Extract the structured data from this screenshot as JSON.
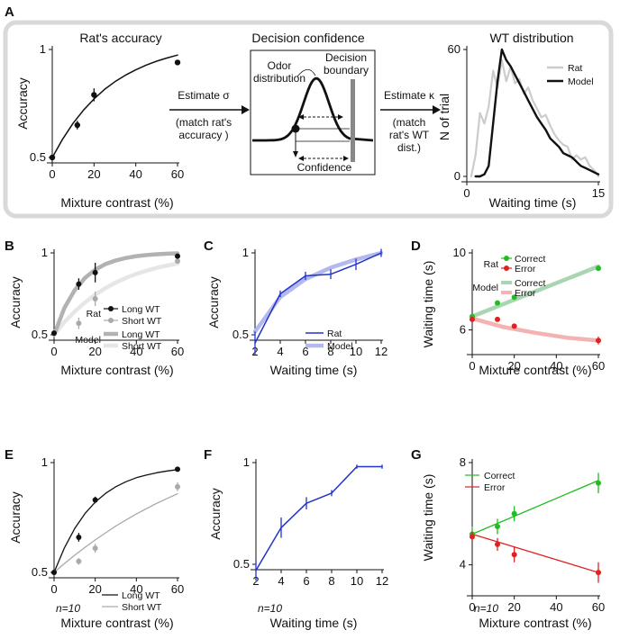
{
  "panels": {
    "A": {
      "label": "A",
      "accuracy_title": "Rat's accuracy",
      "accuracy_ylabel": "Accuracy",
      "accuracy_xlabel": "Mixture contrast (%)",
      "accuracy_xticks": [
        "0",
        "20",
        "40",
        "60"
      ],
      "accuracy_yticks": [
        "0.5",
        "1"
      ],
      "arrow1_text_1": "Estimate σ",
      "arrow1_text_2": "(match rat's",
      "arrow1_text_3": "accuracy )",
      "confidence_title": "Decision confidence",
      "odor_label_1": "Odor",
      "odor_label_2": "distribution",
      "boundary_label_1": "Decision",
      "boundary_label_2": "boundary",
      "confidence_label": "Confidence",
      "arrow2_text_1": "Estimate κ",
      "arrow2_text_2": "(match",
      "arrow2_text_3": "rat's WT",
      "arrow2_text_4": "dist.)",
      "wt_title": "WT distribution",
      "wt_ylabel": "N of trial",
      "wt_xlabel": "Waiting time (s)",
      "wt_xticks": [
        "0",
        "15"
      ],
      "wt_yticks": [
        "0",
        "60"
      ],
      "legend_rat": "Rat",
      "legend_model": "Model"
    },
    "B": {
      "label": "B",
      "ylabel": "Accuracy",
      "xlabel": "Mixture contrast (%)",
      "xticks": [
        "0",
        "20",
        "40",
        "60"
      ],
      "yticks": [
        "0.5",
        "1"
      ],
      "legend_rat": "Rat",
      "legend_model": "Model",
      "legend_long": "Long WT",
      "legend_short": "Short WT"
    },
    "C": {
      "label": "C",
      "ylabel": "Accuracy",
      "xlabel": "Waiting time (s)",
      "xticks": [
        "2",
        "4",
        "6",
        "8",
        "10",
        "12"
      ],
      "yticks": [
        "0.5",
        "1"
      ],
      "legend_rat": "Rat",
      "legend_model": "Model"
    },
    "D": {
      "label": "D",
      "ylabel": "Waiting time (s)",
      "xlabel": "Mixture contrast (%)",
      "xticks": [
        "0",
        "20",
        "40",
        "60"
      ],
      "yticks": [
        "6",
        "10"
      ],
      "legend_rat": "Rat",
      "legend_model": "Model",
      "legend_correct": "Correct",
      "legend_error": "Error"
    },
    "E": {
      "label": "E",
      "ylabel": "Accuracy",
      "xlabel": "Mixture contrast (%)",
      "xticks": [
        "0",
        "20",
        "40",
        "60"
      ],
      "yticks": [
        "0.5",
        "1"
      ],
      "legend_long": "Long WT",
      "legend_short": "Short WT",
      "n_label": "n=10"
    },
    "F": {
      "label": "F",
      "ylabel": "Accuracy",
      "xlabel": "Waiting time (s)",
      "xticks": [
        "2",
        "4",
        "6",
        "8",
        "10",
        "12"
      ],
      "yticks": [
        "0.5",
        "1"
      ],
      "n_label": "n=10"
    },
    "G": {
      "label": "G",
      "ylabel": "Waiting time (s)",
      "xlabel": "Mixture contrast (%)",
      "xticks": [
        "0",
        "20",
        "40",
        "60"
      ],
      "yticks": [
        "4",
        "8"
      ],
      "legend_correct": "Correct",
      "legend_error": "Error",
      "n_label": "n=10"
    }
  },
  "colors": {
    "black": "#111111",
    "gray": "#aaaaaa",
    "dark_gray": "#b2b2b2",
    "light_gray": "#e6e6e6",
    "blue": "#2233cc",
    "light_blue": "#b3b9ec",
    "green": "#22bb22",
    "red": "#dd2222",
    "light_green": "#a8d5b2",
    "light_red": "#f4b2b2",
    "frame": "#d9d9d9"
  },
  "chart_data": [
    {
      "id": "A-accuracy",
      "type": "scatter",
      "title": "Rat's accuracy",
      "xlabel": "Mixture contrast (%)",
      "ylabel": "Accuracy",
      "xlim": [
        0,
        60
      ],
      "ylim": [
        0.5,
        1
      ],
      "points": [
        {
          "x": 0,
          "y": 0.5
        },
        {
          "x": 12,
          "y": 0.65,
          "err": 0.02
        },
        {
          "x": 20,
          "y": 0.79,
          "err": 0.03
        },
        {
          "x": 60,
          "y": 0.94
        }
      ],
      "fit": {
        "x": [
          0,
          5,
          10,
          15,
          20,
          25,
          30,
          35,
          40,
          45,
          50,
          55,
          60
        ],
        "y": [
          0.5,
          0.586,
          0.659,
          0.72,
          0.771,
          0.815,
          0.851,
          0.881,
          0.906,
          0.928,
          0.946,
          0.961,
          0.974
        ]
      }
    },
    {
      "id": "A-wt",
      "type": "line",
      "title": "WT distribution",
      "xlabel": "Waiting time (s)",
      "ylabel": "N of trial",
      "xlim": [
        0,
        15
      ],
      "ylim": [
        0,
        60
      ],
      "series": [
        {
          "name": "Rat",
          "x": [
            0.5,
            1,
            1.5,
            2,
            2.5,
            3,
            3.5,
            4,
            4.5,
            5,
            5.5,
            6,
            6.5,
            7,
            7.5,
            8,
            8.5,
            9,
            9.5,
            10,
            10.5,
            11,
            11.5,
            12,
            12.5,
            13,
            13.5,
            14,
            14.5,
            15
          ],
          "y": [
            0,
            10,
            30,
            25,
            33,
            50,
            42,
            55,
            45,
            52,
            44,
            46,
            39,
            42,
            36,
            32,
            28,
            29,
            24,
            20,
            17,
            15,
            14,
            8,
            10,
            8,
            9,
            5,
            3,
            0
          ]
        },
        {
          "name": "Model",
          "x": [
            1,
            1.5,
            2,
            2.5,
            3,
            3.5,
            4,
            4.5,
            5,
            5.5,
            6,
            6.5,
            7,
            7.5,
            8,
            8.5,
            9,
            9.5,
            10,
            10.5,
            11,
            11.5,
            12,
            12.5,
            13,
            13.5,
            14,
            14.5,
            15
          ],
          "y": [
            0,
            0,
            1,
            5,
            25,
            45,
            60,
            55,
            52,
            48,
            44,
            40,
            36,
            32,
            28,
            25,
            22,
            18,
            16,
            14,
            11,
            10,
            9,
            7,
            5,
            4,
            3,
            2,
            1
          ]
        }
      ]
    },
    {
      "id": "B",
      "type": "scatter",
      "xlabel": "Mixture contrast (%)",
      "ylabel": "Accuracy",
      "xlim": [
        0,
        60
      ],
      "ylim": [
        0.5,
        1
      ],
      "series": [
        {
          "name": "Rat Long WT",
          "points": [
            {
              "x": 0,
              "y": 0.51,
              "err": 0.01
            },
            {
              "x": 12,
              "y": 0.81,
              "err": 0.035
            },
            {
              "x": 20,
              "y": 0.88,
              "err": 0.06
            },
            {
              "x": 60,
              "y": 0.98,
              "err": 0.015
            }
          ]
        },
        {
          "name": "Rat Short WT",
          "points": [
            {
              "x": 0,
              "y": 0.51,
              "err": 0.01
            },
            {
              "x": 12,
              "y": 0.57,
              "err": 0.035
            },
            {
              "x": 20,
              "y": 0.72,
              "err": 0.045
            },
            {
              "x": 60,
              "y": 0.95,
              "err": 0.015
            }
          ]
        },
        {
          "name": "Model Long WT",
          "x": [
            0,
            5,
            10,
            15,
            20,
            25,
            30,
            35,
            40,
            45,
            50,
            55,
            60
          ],
          "y": [
            0.5,
            0.663,
            0.772,
            0.847,
            0.898,
            0.932,
            0.954,
            0.969,
            0.98,
            0.987,
            0.992,
            0.995,
            0.997
          ]
        },
        {
          "name": "Model Short WT",
          "x": [
            0,
            5,
            10,
            15,
            20,
            25,
            30,
            35,
            40,
            45,
            50,
            55,
            60
          ],
          "y": [
            0.5,
            0.577,
            0.642,
            0.698,
            0.745,
            0.785,
            0.819,
            0.848,
            0.872,
            0.892,
            0.909,
            0.923,
            0.935
          ]
        }
      ]
    },
    {
      "id": "C",
      "type": "line",
      "xlabel": "Waiting time (s)",
      "ylabel": "Accuracy",
      "xlim": [
        2,
        12
      ],
      "ylim": [
        0.5,
        1
      ],
      "series": [
        {
          "name": "Rat",
          "x": [
            2,
            4,
            6,
            8,
            10,
            12
          ],
          "y": [
            0.45,
            0.75,
            0.86,
            0.87,
            0.93,
            1.0
          ],
          "err": [
            0.07,
            0.02,
            0.025,
            0.03,
            0.035,
            0.025
          ]
        },
        {
          "name": "Model",
          "x": [
            2,
            4,
            6,
            8,
            10,
            12
          ],
          "y": [
            0.52,
            0.73,
            0.84,
            0.91,
            0.96,
            1.0
          ]
        }
      ]
    },
    {
      "id": "D",
      "type": "scatter",
      "xlabel": "Mixture contrast (%)",
      "ylabel": "Waiting time (s)",
      "xlim": [
        0,
        60
      ],
      "ylim": [
        5,
        10
      ],
      "series": [
        {
          "name": "Rat Correct",
          "points": [
            {
              "x": 0,
              "y": 6.7
            },
            {
              "x": 12,
              "y": 7.4,
              "err": 0.12
            },
            {
              "x": 20,
              "y": 7.7,
              "err": 0.08
            },
            {
              "x": 60,
              "y": 9.2,
              "err": 0.12
            }
          ]
        },
        {
          "name": "Rat Error",
          "points": [
            {
              "x": 0,
              "y": 6.55,
              "err": 0.1
            },
            {
              "x": 12,
              "y": 6.55
            },
            {
              "x": 20,
              "y": 6.2,
              "err": 0.08
            },
            {
              "x": 60,
              "y": 5.45,
              "err": 0.2
            }
          ]
        },
        {
          "name": "Model Correct",
          "x": [
            0,
            60
          ],
          "y": [
            6.7,
            9.3
          ]
        },
        {
          "name": "Model Error",
          "x": [
            0,
            15,
            30,
            45,
            60
          ],
          "y": [
            6.6,
            6.15,
            5.85,
            5.6,
            5.45
          ]
        }
      ]
    },
    {
      "id": "E",
      "type": "scatter",
      "xlabel": "Mixture contrast (%)",
      "ylabel": "Accuracy",
      "xlim": [
        0,
        60
      ],
      "ylim": [
        0.5,
        1
      ],
      "series": [
        {
          "name": "Long WT",
          "points": [
            {
              "x": 0,
              "y": 0.5
            },
            {
              "x": 12,
              "y": 0.66,
              "err": 0.02
            },
            {
              "x": 20,
              "y": 0.83,
              "err": 0.015
            },
            {
              "x": 60,
              "y": 0.97,
              "err": 0.01
            }
          ]
        },
        {
          "name": "Short WT",
          "points": [
            {
              "x": 0,
              "y": 0.5
            },
            {
              "x": 12,
              "y": 0.55,
              "err": 0.015
            },
            {
              "x": 20,
              "y": 0.61,
              "err": 0.02
            },
            {
              "x": 60,
              "y": 0.89,
              "err": 0.02
            }
          ]
        },
        {
          "name": "Long WT fit",
          "x": [
            0,
            5,
            10,
            15,
            20,
            25,
            30,
            35,
            40,
            45,
            50,
            55,
            60
          ],
          "y": [
            0.5,
            0.611,
            0.699,
            0.768,
            0.82,
            0.86,
            0.89,
            0.913,
            0.931,
            0.944,
            0.954,
            0.962,
            0.968
          ]
        },
        {
          "name": "Short WT fit",
          "x": [
            0,
            5,
            10,
            15,
            20,
            25,
            30,
            35,
            40,
            45,
            50,
            55,
            60
          ],
          "y": [
            0.5,
            0.54,
            0.578,
            0.614,
            0.648,
            0.68,
            0.711,
            0.739,
            0.766,
            0.791,
            0.815,
            0.837,
            0.858
          ]
        }
      ]
    },
    {
      "id": "F",
      "type": "line",
      "xlabel": "Waiting time (s)",
      "ylabel": "Accuracy",
      "xlim": [
        2,
        12
      ],
      "ylim": [
        0.5,
        1
      ],
      "series": [
        {
          "name": "Rat",
          "x": [
            2,
            4,
            6,
            8,
            10,
            12
          ],
          "y": [
            0.47,
            0.68,
            0.8,
            0.85,
            0.98,
            0.98
          ],
          "err": [
            0.05,
            0.05,
            0.03,
            0.015,
            0.01,
            0.01
          ]
        }
      ]
    },
    {
      "id": "G",
      "type": "scatter",
      "xlabel": "Mixture contrast (%)",
      "ylabel": "Waiting time (s)",
      "xlim": [
        0,
        60
      ],
      "ylim": [
        3,
        8
      ],
      "series": [
        {
          "name": "Correct",
          "points": [
            {
              "x": 0,
              "y": 5.2,
              "err": 0.3
            },
            {
              "x": 12,
              "y": 5.5,
              "err": 0.3
            },
            {
              "x": 20,
              "y": 6.0,
              "err": 0.3
            },
            {
              "x": 60,
              "y": 7.2,
              "err": 0.4
            }
          ]
        },
        {
          "name": "Error",
          "points": [
            {
              "x": 0,
              "y": 5.1,
              "err": 0.2
            },
            {
              "x": 12,
              "y": 4.8,
              "err": 0.25
            },
            {
              "x": 20,
              "y": 4.4,
              "err": 0.3
            },
            {
              "x": 60,
              "y": 3.7,
              "err": 0.4
            }
          ]
        },
        {
          "name": "Correct fit",
          "x": [
            0,
            60
          ],
          "y": [
            5.2,
            7.3
          ]
        },
        {
          "name": "Error fit",
          "x": [
            0,
            60
          ],
          "y": [
            5.2,
            3.7
          ]
        }
      ]
    }
  ]
}
